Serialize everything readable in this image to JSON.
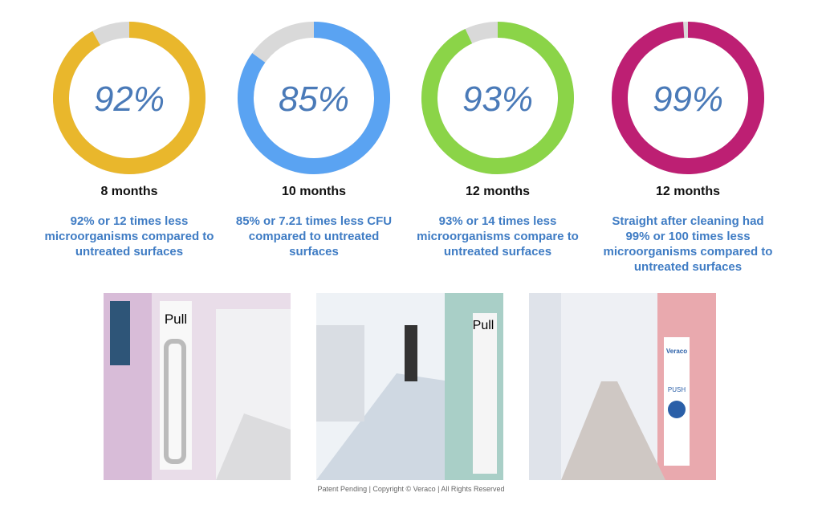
{
  "chart_data": [
    {
      "type": "donut",
      "values": [
        92
      ],
      "value_labels": [
        "92%"
      ],
      "ylim": [
        0,
        100
      ],
      "color": "#e9b72c",
      "track_color": "#d9d9d9",
      "subtitle": "8 months",
      "caption": "92% or 12 times less microorganisms compared to untreated surfaces"
    },
    {
      "type": "donut",
      "values": [
        85
      ],
      "value_labels": [
        "85%"
      ],
      "ylim": [
        0,
        100
      ],
      "color": "#5aa3f2",
      "track_color": "#d9d9d9",
      "subtitle": "10 months",
      "caption": "85% or 7.21 times less CFU compared to untreated surfaces"
    },
    {
      "type": "donut",
      "values": [
        93
      ],
      "value_labels": [
        "93%"
      ],
      "ylim": [
        0,
        100
      ],
      "color": "#8bd448",
      "track_color": "#d9d9d9",
      "subtitle": "12 months",
      "caption": "93% or 14 times less microorganisms compare to untreated surfaces"
    },
    {
      "type": "donut",
      "values": [
        99
      ],
      "value_labels": [
        "99%"
      ],
      "ylim": [
        0,
        100
      ],
      "color": "#bd1f73",
      "track_color": "#d9d9d9",
      "subtitle": "12 months",
      "caption": "Straight after cleaning had 99% or 100 times less microorganisms compared to untreated surfaces"
    }
  ],
  "photos": [
    {
      "label": "Pull"
    },
    {
      "label": "Pull"
    },
    {
      "label": "PUSH",
      "brand": "Veraco"
    }
  ],
  "footer": "Patent Pending | Copyright © Veraco | All Rights Reserved"
}
